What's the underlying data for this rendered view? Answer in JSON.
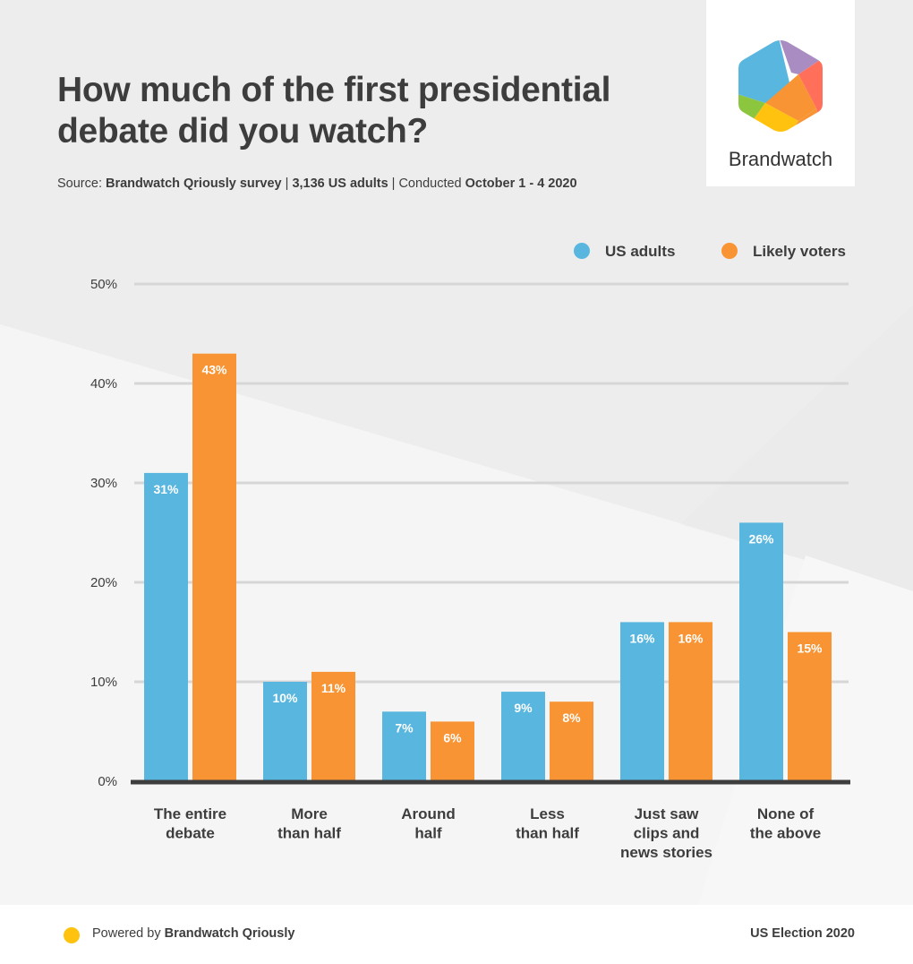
{
  "header": {
    "title_line1": "How much of the first presidential",
    "title_line2": "debate did you watch?",
    "source_prefix": "Source: ",
    "source_survey": "Brandwatch Qriously survey",
    "source_sep1": " | ",
    "source_sample": "3,136 US adults",
    "source_sep2": " | Conducted ",
    "source_dates": "October 1 - 4 2020"
  },
  "logo": {
    "text": "Brandwatch"
  },
  "colors": {
    "us_adults": "#59b7df",
    "likely_voters": "#f89433",
    "axis": "#3d3d3d",
    "grid": "#d6d6d6",
    "label": "#3d3d3d"
  },
  "footer": {
    "powered_prefix": "Powered by ",
    "powered_brand": "Brandwatch Qriously",
    "tag": "US Election 2020"
  },
  "chart_data": {
    "type": "bar",
    "title": "How much of the first presidential debate did you watch?",
    "xlabel": "",
    "ylabel": "",
    "ylim": [
      0,
      50
    ],
    "yticks": [
      0,
      10,
      20,
      30,
      40,
      50
    ],
    "ytick_labels": [
      "0%",
      "10%",
      "20%",
      "30%",
      "40%",
      "50%"
    ],
    "grid": true,
    "legend_position": "top-right",
    "categories": [
      [
        "The entire",
        "debate"
      ],
      [
        "More",
        "than half"
      ],
      [
        "Around",
        "half"
      ],
      [
        "Less",
        "than half"
      ],
      [
        "Just saw",
        "clips and",
        "news stories"
      ],
      [
        "None of",
        "the above"
      ]
    ],
    "series": [
      {
        "name": "US adults",
        "values": [
          31,
          10,
          7,
          9,
          16,
          26
        ],
        "labels": [
          "31%",
          "10%",
          "7%",
          "9%",
          "16%",
          "26%"
        ]
      },
      {
        "name": "Likely voters",
        "values": [
          43,
          11,
          6,
          8,
          16,
          15
        ],
        "labels": [
          "43%",
          "11%",
          "6%",
          "8%",
          "16%",
          "15%"
        ]
      }
    ]
  }
}
